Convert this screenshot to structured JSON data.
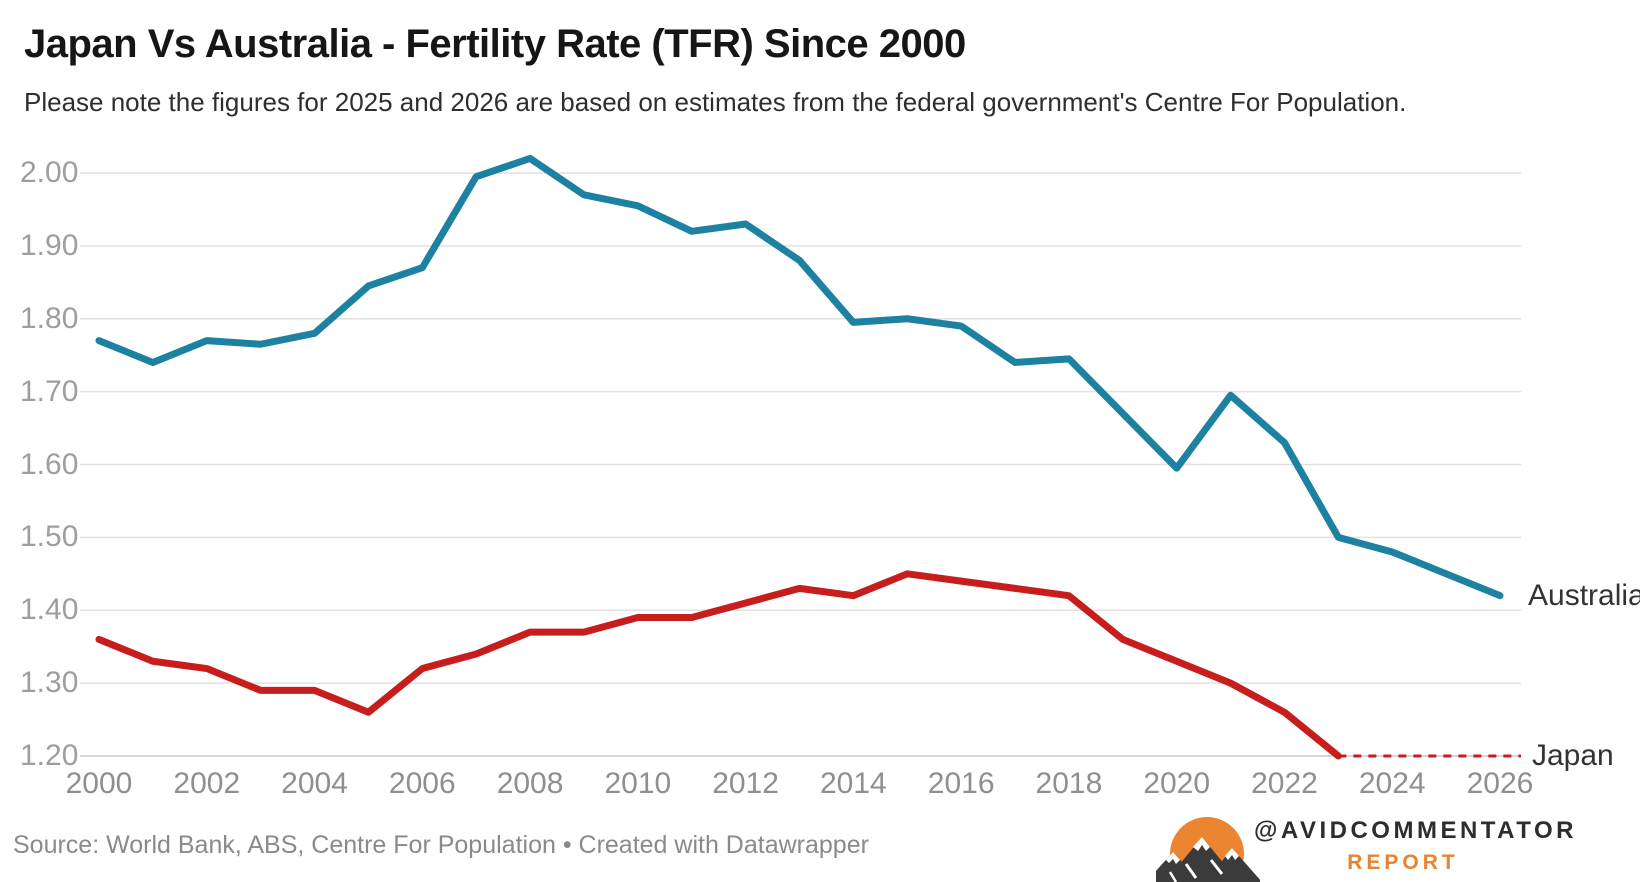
{
  "header": {
    "title": "Japan Vs Australia - Fertility Rate (TFR) Since 2000",
    "subtitle": "Please note the figures for 2025 and 2026 are based on estimates from the federal government's Centre For Population."
  },
  "chart_data": {
    "type": "line",
    "x": [
      2000,
      2001,
      2002,
      2003,
      2004,
      2005,
      2006,
      2007,
      2008,
      2009,
      2010,
      2011,
      2012,
      2013,
      2014,
      2015,
      2016,
      2017,
      2018,
      2019,
      2020,
      2021,
      2022,
      2023,
      2024,
      2025,
      2026
    ],
    "series": [
      {
        "name": "Australia",
        "color": "#1d81a2",
        "values": [
          1.77,
          1.74,
          1.77,
          1.765,
          1.78,
          1.845,
          1.87,
          1.995,
          2.02,
          1.97,
          1.955,
          1.92,
          1.93,
          1.88,
          1.795,
          1.8,
          1.79,
          1.74,
          1.745,
          1.67,
          1.595,
          1.695,
          1.63,
          1.5,
          1.48,
          1.45,
          1.42
        ]
      },
      {
        "name": "Japan",
        "color": "#c71e1d",
        "values": [
          1.36,
          1.33,
          1.32,
          1.29,
          1.29,
          1.26,
          1.32,
          1.34,
          1.37,
          1.37,
          1.39,
          1.39,
          1.41,
          1.43,
          1.42,
          1.45,
          1.44,
          1.43,
          1.42,
          1.36,
          1.33,
          1.3,
          1.26,
          1.2
        ],
        "dotted_extension": {
          "from_year": 2023,
          "value": 1.2,
          "note": "flat dashed projection to right edge"
        }
      }
    ],
    "ylim": [
      1.2,
      2.0
    ],
    "yticks": [
      "2.00",
      "1.90",
      "1.80",
      "1.70",
      "1.60",
      "1.50",
      "1.40",
      "1.30",
      "1.20"
    ],
    "xticks": [
      2000,
      2002,
      2004,
      2006,
      2008,
      2010,
      2012,
      2014,
      2016,
      2018,
      2020,
      2022,
      2024,
      2026
    ],
    "grid": true,
    "legend_position": "line-end-labels",
    "colors": {
      "grid": "#e2e2e2",
      "baseline": "#c9c9c9"
    }
  },
  "footer": {
    "source": "Source: World Bank, ABS, Centre For Population • Created with Datawrapper"
  },
  "branding": {
    "handle": "@AVIDCOMMENTATOR",
    "sub_label": "REPORT",
    "accent": "#e8832f",
    "logo": "sun-mountains-icon"
  }
}
